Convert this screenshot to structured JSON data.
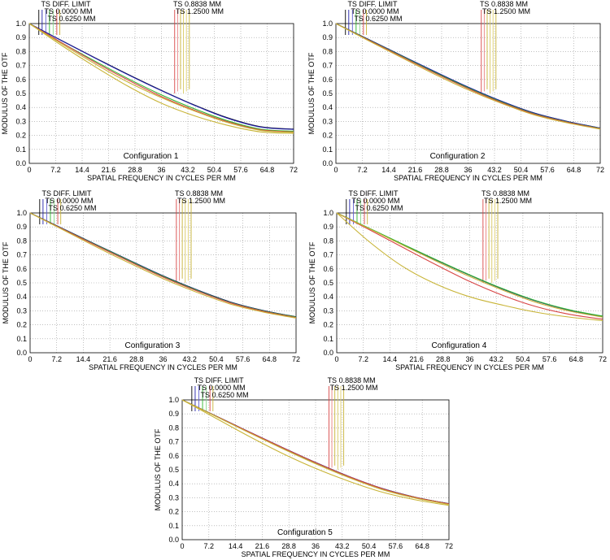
{
  "chart_data": [
    {
      "type": "line",
      "title": "Configuration 1",
      "xlabel": "SPATIAL FREQUENCY IN CYCLES PER MM",
      "ylabel": "MODULUS OF THE OTF",
      "xlim": [
        0,
        72
      ],
      "ylim": [
        0,
        1
      ],
      "x_ticks": [
        "0",
        "7.2",
        "14.4",
        "21.6",
        "28.8",
        "36",
        "43.2",
        "50.4",
        "57.6",
        "64.8",
        "72"
      ],
      "y_ticks": [
        "0.0",
        "0.1",
        "0.2",
        "0.3",
        "0.4",
        "0.5",
        "0.6",
        "0.7",
        "0.8",
        "0.9",
        "1.0"
      ],
      "legend_left": [
        "TS DIFF. LIMIT",
        "TS 0.0000 MM",
        "TS 0.6250 MM"
      ],
      "legend_right": [
        "TS 0.8838 MM",
        "TS 1.2500 MM"
      ],
      "x": [
        0,
        9,
        18,
        27,
        36,
        45,
        54,
        63,
        72
      ],
      "series": [
        {
          "name": "TS DIFF. LIMIT",
          "color": "#000000",
          "values": [
            1.0,
            0.876,
            0.754,
            0.635,
            0.522,
            0.417,
            0.326,
            0.262,
            0.245
          ]
        },
        {
          "name": "TS 0.0000 MM",
          "color": "#1f1fa8",
          "values": [
            1.0,
            0.875,
            0.752,
            0.633,
            0.52,
            0.415,
            0.323,
            0.26,
            0.243
          ]
        },
        {
          "name": "TS 0.6250 MM",
          "color": "#2db82d",
          "values": [
            1.0,
            0.86,
            0.73,
            0.605,
            0.49,
            0.39,
            0.305,
            0.245,
            0.23
          ]
        },
        {
          "name": "TS 0.8838 MM",
          "color": "#d84545",
          "values": [
            1.0,
            0.86,
            0.722,
            0.595,
            0.478,
            0.38,
            0.298,
            0.24,
            0.225
          ]
        },
        {
          "name": "TS 1.2500 MM",
          "color": "#c8b437",
          "values": [
            1.0,
            0.852,
            0.71,
            0.58,
            0.47,
            0.374,
            0.292,
            0.236,
            0.222
          ]
        },
        {
          "name": "TS 1.2500 MM (sagittal)",
          "color": "#c8b437",
          "values": [
            1.0,
            0.84,
            0.69,
            0.55,
            0.43,
            0.34,
            0.272,
            0.225,
            0.215
          ]
        }
      ]
    },
    {
      "type": "line",
      "title": "Configuration 2",
      "xlabel": "SPATIAL FREQUENCY IN CYCLES PER MM",
      "ylabel": "MODULUS OF THE OTF",
      "xlim": [
        0,
        72
      ],
      "ylim": [
        0,
        1
      ],
      "x_ticks": [
        "0",
        "7.2",
        "14.4",
        "21.6",
        "28.8",
        "36",
        "43.2",
        "50.4",
        "57.6",
        "64.8",
        "72"
      ],
      "y_ticks": [
        "0.0",
        "0.1",
        "0.2",
        "0.3",
        "0.4",
        "0.5",
        "0.6",
        "0.7",
        "0.8",
        "0.9",
        "1.0"
      ],
      "legend_left": [
        "TS DIFF. LIMIT",
        "TS 0.0000 MM",
        "TS 0.6250 MM"
      ],
      "legend_right": [
        "TS 0.8838 MM",
        "TS 1.2500 MM"
      ],
      "x": [
        0,
        9,
        18,
        27,
        36,
        45,
        54,
        63,
        72
      ],
      "series": [
        {
          "name": "TS DIFF. LIMIT",
          "color": "#000000",
          "values": [
            1.0,
            0.885,
            0.77,
            0.655,
            0.545,
            0.445,
            0.36,
            0.3,
            0.252
          ]
        },
        {
          "name": "TS 0.0000 MM",
          "color": "#1f1fa8",
          "values": [
            1.0,
            0.885,
            0.77,
            0.656,
            0.546,
            0.446,
            0.36,
            0.3,
            0.253
          ]
        },
        {
          "name": "TS 0.6250 MM",
          "color": "#2db82d",
          "values": [
            1.0,
            0.882,
            0.766,
            0.65,
            0.54,
            0.44,
            0.355,
            0.296,
            0.25
          ]
        },
        {
          "name": "TS 0.8838 MM",
          "color": "#d84545",
          "values": [
            1.0,
            0.88,
            0.762,
            0.645,
            0.535,
            0.436,
            0.352,
            0.294,
            0.248
          ]
        },
        {
          "name": "TS 1.2500 MM",
          "color": "#c8b437",
          "values": [
            1.0,
            0.876,
            0.755,
            0.636,
            0.526,
            0.43,
            0.347,
            0.29,
            0.245
          ]
        }
      ]
    },
    {
      "type": "line",
      "title": "Configuration 3",
      "xlabel": "SPATIAL FREQUENCY IN CYCLES PER MM",
      "ylabel": "MODULUS OF THE OTF",
      "xlim": [
        0,
        72
      ],
      "ylim": [
        0,
        1
      ],
      "x_ticks": [
        "0",
        "7.2",
        "14.4",
        "21.6",
        "28.8",
        "36",
        "43.2",
        "50.4",
        "57.6",
        "64.8",
        "72"
      ],
      "y_ticks": [
        "0.0",
        "0.1",
        "0.2",
        "0.3",
        "0.4",
        "0.5",
        "0.6",
        "0.7",
        "0.8",
        "0.9",
        "1.0"
      ],
      "legend_left": [
        "TS DIFF. LIMIT",
        "TS 0.0000 MM",
        "TS 0.6250 MM"
      ],
      "legend_right": [
        "TS 0.8838 MM",
        "TS 1.2500 MM"
      ],
      "x": [
        0,
        9,
        18,
        27,
        36,
        45,
        54,
        63,
        72
      ],
      "series": [
        {
          "name": "TS DIFF. LIMIT",
          "color": "#000000",
          "values": [
            1.0,
            0.886,
            0.772,
            0.66,
            0.55,
            0.452,
            0.365,
            0.303,
            0.257
          ]
        },
        {
          "name": "TS 0.0000 MM",
          "color": "#1f1fa8",
          "values": [
            1.0,
            0.886,
            0.771,
            0.659,
            0.549,
            0.451,
            0.364,
            0.302,
            0.256
          ]
        },
        {
          "name": "TS 0.6250 MM",
          "color": "#2db82d",
          "values": [
            1.0,
            0.884,
            0.769,
            0.656,
            0.546,
            0.448,
            0.361,
            0.3,
            0.255
          ]
        },
        {
          "name": "TS 0.8838 MM",
          "color": "#d84545",
          "values": [
            1.0,
            0.882,
            0.765,
            0.651,
            0.541,
            0.444,
            0.358,
            0.297,
            0.252
          ]
        },
        {
          "name": "TS 1.2500 MM",
          "color": "#c8b437",
          "values": [
            1.0,
            0.878,
            0.756,
            0.64,
            0.53,
            0.434,
            0.35,
            0.292,
            0.248
          ]
        }
      ]
    },
    {
      "type": "line",
      "title": "Configuration 4",
      "xlabel": "SPATIAL FREQUENCY IN CYCLES PER MM",
      "ylabel": "MODULUS OF THE OTF",
      "xlim": [
        0,
        72
      ],
      "ylim": [
        0,
        1
      ],
      "x_ticks": [
        "0",
        "7.2",
        "14.4",
        "21.6",
        "28.8",
        "36",
        "43.2",
        "50.4",
        "57.6",
        "64.8",
        "72"
      ],
      "y_ticks": [
        "0.0",
        "0.1",
        "0.2",
        "0.3",
        "0.4",
        "0.5",
        "0.6",
        "0.7",
        "0.8",
        "0.9",
        "1.0"
      ],
      "legend_left": [
        "TS DIFF. LIMIT",
        "TS 0.0000 MM",
        "TS 0.6250 MM"
      ],
      "legend_right": [
        "TS 0.8838 MM",
        "TS 1.2500 MM"
      ],
      "x": [
        0,
        9,
        18,
        27,
        36,
        45,
        54,
        63,
        72
      ],
      "series": [
        {
          "name": "TS DIFF. LIMIT",
          "color": "#000000",
          "values": [
            1.0,
            0.887,
            0.773,
            0.662,
            0.555,
            0.455,
            0.37,
            0.305,
            0.258
          ]
        },
        {
          "name": "TS 0.0000 MM",
          "color": "#1f1fa8",
          "values": [
            1.0,
            0.887,
            0.774,
            0.663,
            0.556,
            0.456,
            0.37,
            0.305,
            0.26
          ]
        },
        {
          "name": "TS 0.6250 MM",
          "color": "#2db82d",
          "values": [
            1.0,
            0.888,
            0.775,
            0.664,
            0.557,
            0.458,
            0.372,
            0.307,
            0.262
          ]
        },
        {
          "name": "TS 0.8838 MM",
          "color": "#d84545",
          "values": [
            1.0,
            0.878,
            0.752,
            0.628,
            0.51,
            0.41,
            0.33,
            0.275,
            0.24
          ]
        },
        {
          "name": "TS 1.2500 MM",
          "color": "#c8b437",
          "values": [
            1.0,
            0.885,
            0.768,
            0.654,
            0.545,
            0.447,
            0.36,
            0.298,
            0.255
          ]
        },
        {
          "name": "TS 1.2500 MM (sagittal)",
          "color": "#c8b437",
          "values": [
            1.0,
            0.79,
            0.615,
            0.49,
            0.4,
            0.34,
            0.29,
            0.255,
            0.23
          ]
        }
      ]
    },
    {
      "type": "line",
      "title": "Configuration 5",
      "xlabel": "SPATIAL FREQUENCY IN CYCLES PER MM",
      "ylabel": "MODULUS OF THE OTF",
      "xlim": [
        0,
        72
      ],
      "ylim": [
        0,
        1
      ],
      "x_ticks": [
        "0",
        "7.2",
        "14.4",
        "21.6",
        "28.8",
        "36",
        "43.2",
        "50.4",
        "57.6",
        "64.8",
        "72"
      ],
      "y_ticks": [
        "0.0",
        "0.1",
        "0.2",
        "0.3",
        "0.4",
        "0.5",
        "0.6",
        "0.7",
        "0.8",
        "0.9",
        "1.0"
      ],
      "legend_left": [
        "TS DIFF. LIMIT",
        "TS 0.0000 MM",
        "TS 0.6250 MM"
      ],
      "legend_right": [
        "TS 0.8838 MM",
        "TS 1.2500 MM"
      ],
      "x": [
        0,
        9,
        18,
        27,
        36,
        45,
        54,
        63,
        72
      ],
      "series": [
        {
          "name": "TS DIFF. LIMIT",
          "color": "#000000",
          "values": [
            1.0,
            0.886,
            0.772,
            0.66,
            0.552,
            0.452,
            0.366,
            0.303,
            0.257
          ]
        },
        {
          "name": "TS 0.0000 MM",
          "color": "#1f1fa8",
          "values": [
            1.0,
            0.886,
            0.772,
            0.66,
            0.552,
            0.452,
            0.366,
            0.303,
            0.257
          ]
        },
        {
          "name": "TS 0.6250 MM",
          "color": "#2db82d",
          "values": [
            1.0,
            0.885,
            0.77,
            0.658,
            0.55,
            0.45,
            0.364,
            0.302,
            0.256
          ]
        },
        {
          "name": "TS 0.8838 MM",
          "color": "#d84545",
          "values": [
            1.0,
            0.885,
            0.771,
            0.659,
            0.551,
            0.451,
            0.365,
            0.302,
            0.256
          ]
        },
        {
          "name": "TS 1.2500 MM",
          "color": "#c8b437",
          "values": [
            1.0,
            0.883,
            0.766,
            0.652,
            0.543,
            0.444,
            0.358,
            0.297,
            0.252
          ]
        },
        {
          "name": "TS 1.2500 MM (sagittal)",
          "color": "#c8b437",
          "values": [
            1.0,
            0.87,
            0.74,
            0.618,
            0.51,
            0.418,
            0.34,
            0.285,
            0.245
          ]
        }
      ]
    }
  ]
}
